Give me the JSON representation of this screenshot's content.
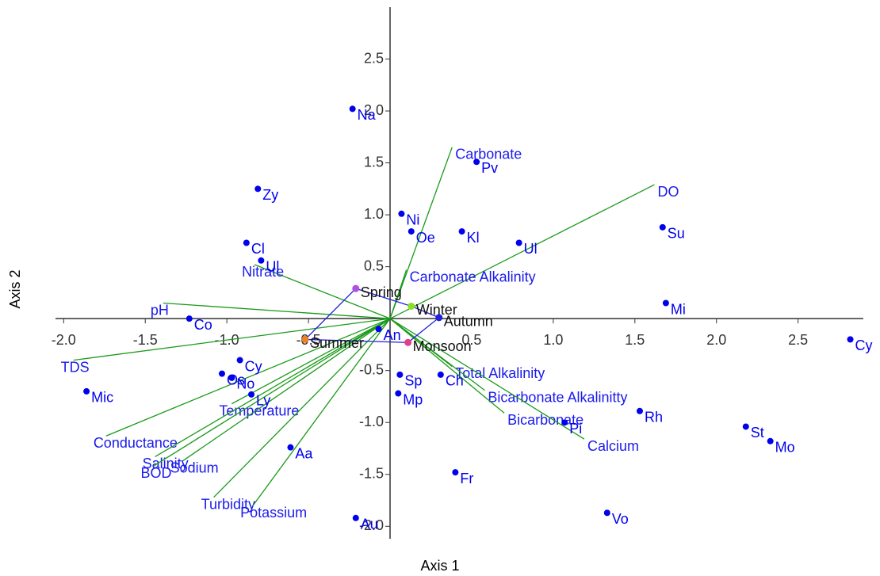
{
  "chart_data": {
    "type": "scatter",
    "x_label": "Axis 1",
    "y_label": "Axis 2",
    "xlim": [
      -2.05,
      2.9
    ],
    "ylim": [
      -2.12,
      3.0
    ],
    "xticks": [
      {
        "value": -2,
        "label": "-2.0"
      },
      -1.5,
      {
        "value": -1,
        "label": "-1.0"
      },
      -0.5,
      0.5,
      {
        "value": 1,
        "label": "1.0"
      },
      1.5,
      {
        "value": 2,
        "label": "2.0"
      },
      2.5
    ],
    "yticks": [
      2.5,
      {
        "value": 2,
        "label": "2.0"
      },
      1.5,
      {
        "value": 1,
        "label": "1.0"
      },
      0.5,
      -0.5,
      {
        "value": -1,
        "label": "-1.0"
      },
      -1.5,
      {
        "value": -2,
        "label": "-2.0"
      }
    ],
    "points": {
      "color": "#0000ee",
      "labels": [
        "Na",
        "Zy",
        "Ni",
        "Oe",
        "Kl",
        "Pv",
        "Ul",
        "Su",
        "Mi",
        "Cy",
        "Cl",
        "Ul",
        "Co",
        "Mic",
        "Os",
        "No",
        "Cy",
        "Ly",
        "Aa",
        "Au",
        "An",
        "Sp",
        "Mp",
        "Ch",
        "Fr",
        "Pi",
        "Rh",
        "St",
        "Mo",
        "Vo"
      ],
      "x": [
        -0.23,
        -0.81,
        0.07,
        0.13,
        0.44,
        0.53,
        0.79,
        1.67,
        1.69,
        2.82,
        -0.88,
        -0.79,
        -1.23,
        -1.86,
        -1.03,
        -0.97,
        -0.92,
        -0.85,
        -0.61,
        -0.21,
        -0.07,
        0.06,
        0.05,
        0.31,
        0.4,
        1.07,
        1.53,
        2.18,
        2.33,
        1.33
      ],
      "y": [
        2.02,
        1.25,
        1.01,
        0.84,
        0.84,
        1.51,
        0.73,
        0.88,
        0.15,
        -0.2,
        0.73,
        0.56,
        0.0,
        -0.7,
        -0.53,
        -0.57,
        -0.4,
        -0.73,
        -1.24,
        -1.92,
        -0.1,
        -0.54,
        -0.72,
        -0.54,
        -1.48,
        -1.0,
        -0.89,
        -1.04,
        -1.18,
        -1.87
      ]
    },
    "vectors": {
      "color": "#1a9a1a",
      "labels": [
        "Carbonate",
        "DO",
        "Nitrate",
        "pH",
        "TDS",
        "Carbonate Alkalinity",
        "Total Alkalinity",
        "Bicarbonate Alkalinitty",
        "Bicarbonate",
        "Calcium",
        "Temperature",
        "Conductance",
        "Salinity",
        "BOD",
        "Sodium",
        "Turbidity",
        "Potassium"
      ],
      "x": [
        0.38,
        1.62,
        -0.83,
        -1.39,
        -1.94,
        0.1,
        0.38,
        0.58,
        0.7,
        1.19,
        -0.97,
        -1.74,
        -1.44,
        -1.45,
        -1.27,
        -1.08,
        -0.84
      ],
      "y": [
        1.65,
        1.29,
        0.52,
        0.15,
        -0.4,
        0.47,
        -0.46,
        -0.69,
        -0.91,
        -1.16,
        -0.82,
        -1.13,
        -1.33,
        -1.42,
        -1.37,
        -1.72,
        -1.8
      ]
    },
    "groups": {
      "hull_color": "#2020dd",
      "labels": [
        "Spring",
        "Winter",
        "Autumn",
        "Monsoon",
        "Summer"
      ],
      "colors": [
        "#b050e0",
        "#88e020",
        "#2020dd",
        "#e0408a",
        "#f08020"
      ],
      "x": [
        -0.21,
        0.13,
        0.3,
        0.11,
        -0.52
      ],
      "y": [
        0.29,
        0.12,
        0.01,
        -0.23,
        -0.2
      ]
    }
  }
}
